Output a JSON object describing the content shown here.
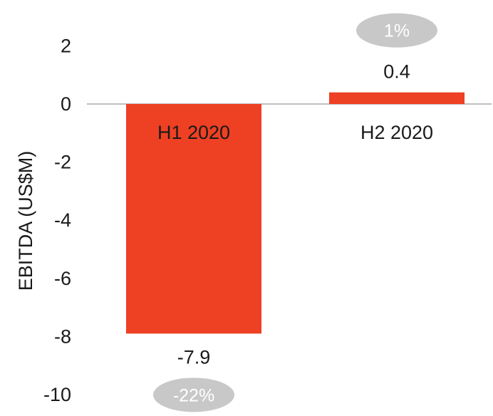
{
  "chart_data": {
    "type": "bar",
    "categories": [
      "H1 2020",
      "H2 2020"
    ],
    "values": [
      -7.9,
      0.4
    ],
    "data_labels": [
      "-7.9",
      "0.4"
    ],
    "percent_badges": [
      "-22%",
      "1%"
    ],
    "title": "",
    "xlabel": "",
    "ylabel": "EBITDA (US$M)",
    "ylim": [
      -10,
      3
    ],
    "yticks": [
      2,
      0,
      -2,
      -4,
      -6,
      -8,
      -10
    ],
    "ytick_labels": [
      "2",
      "0",
      "-2",
      "-4",
      "-6",
      "-8",
      "-10"
    ],
    "bar_color": "#EE4023",
    "badge_color": "#C8C8C8",
    "grid": false,
    "legend": "none"
  }
}
